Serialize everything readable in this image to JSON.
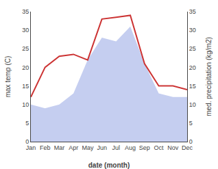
{
  "chart_data": {
    "type": "line",
    "xlabel": "date (month)",
    "ylabel": "max temp (C)",
    "y2label": "med. precipitation (kg/m2)",
    "categories": [
      "Jan",
      "Feb",
      "Mar",
      "Apr",
      "May",
      "Jun",
      "Jul",
      "Aug",
      "Sep",
      "Oct",
      "Nov",
      "Dec"
    ],
    "series": [
      {
        "type": "area",
        "color": "#c5cef0",
        "values": [
          10,
          9,
          10,
          13,
          22,
          28,
          27,
          31,
          21,
          13,
          12,
          12
        ]
      },
      {
        "type": "line",
        "color": "#cc3333",
        "axis": "y2",
        "values": [
          12,
          20,
          23,
          23.5,
          22,
          33,
          33.5,
          34,
          21,
          15,
          15,
          14
        ]
      }
    ],
    "ylim": [
      0,
      35
    ],
    "yticks": [
      0,
      5,
      10,
      15,
      20,
      25,
      30,
      35
    ],
    "y2lim": [
      0,
      35
    ],
    "y2ticks": [
      0,
      5,
      10,
      15,
      20,
      25,
      30,
      35
    ],
    "grid": false
  }
}
